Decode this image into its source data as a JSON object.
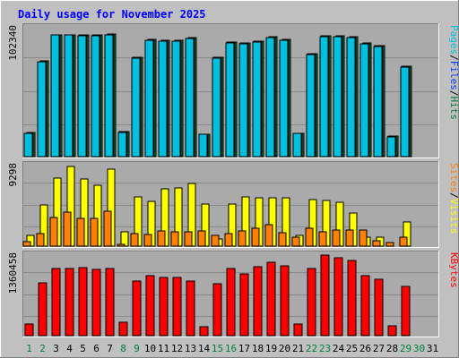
{
  "chart_data": {
    "type": "bar",
    "title": "Daily usage for November 2025",
    "categories": [
      "1",
      "2",
      "3",
      "4",
      "5",
      "6",
      "7",
      "8",
      "9",
      "10",
      "11",
      "12",
      "13",
      "14",
      "15",
      "16",
      "17",
      "18",
      "19",
      "20",
      "21",
      "22",
      "23",
      "24",
      "25",
      "26",
      "27",
      "28",
      "29",
      "30",
      "31"
    ],
    "weekend_days": [
      "1",
      "2",
      "8",
      "9",
      "15",
      "16",
      "22",
      "23",
      "29",
      "30"
    ],
    "colors": {
      "background": "#c0c0c0",
      "plot": "#aaaaaa",
      "title": "#0000ff",
      "pages": "#00c0e0",
      "files": "#0040ff",
      "hits": "#008040",
      "visits": "#ffff00",
      "sites": "#ff8000",
      "kbytes": "#ff0000",
      "weekday_label": "#000000",
      "weekend_label": "#008040"
    },
    "panels": [
      {
        "id": "hits",
        "y_max_label": "102340",
        "ylim": [
          0,
          108000
        ],
        "side_labels": [
          {
            "text": "Pages",
            "color": "#00c0e0"
          },
          {
            "text": "/",
            "color": "#000000"
          },
          {
            "text": "Files",
            "color": "#0040ff"
          },
          {
            "text": "/",
            "color": "#000000"
          },
          {
            "text": "Hits",
            "color": "#008040"
          }
        ],
        "series": [
          {
            "name": "Hits",
            "color": "#008040",
            "values": [
              20500,
              77700,
              99000,
              99000,
              98700,
              98600,
              99200,
              21500,
              81000,
              95000,
              94300,
              94300,
              96400,
              19500,
              81000,
              93000,
              92500,
              94000,
              97000,
              95000,
              20300,
              84000,
              98000,
              97900,
              97000,
              92000,
              90200,
              18000,
              74000,
              0,
              0
            ]
          },
          {
            "name": "Files",
            "color": "#0040ff",
            "values": [
              20300,
              77400,
              98800,
              98800,
              98500,
              98400,
              99000,
              21300,
              80700,
              94700,
              94000,
              94000,
              96100,
              19300,
              80700,
              92700,
              92200,
              93700,
              96700,
              94700,
              20100,
              83700,
              97700,
              97600,
              96700,
              91700,
              89900,
              17800,
              73700,
              0,
              0
            ]
          },
          {
            "name": "Pages",
            "color": "#00c0e0",
            "values": [
              20000,
              77000,
              98500,
              98500,
              98200,
              98200,
              98600,
              21000,
              80300,
              94300,
              93600,
              93600,
              95700,
              19000,
              80300,
              92300,
              91800,
              93300,
              96300,
              94300,
              19800,
              83300,
              97300,
              97300,
              96300,
              91300,
              89400,
              17500,
              73300,
              0,
              0
            ]
          }
        ]
      },
      {
        "id": "visits",
        "y_max_label": "9298",
        "ylim": [
          0,
          9900
        ],
        "side_labels": [
          {
            "text": "Sites",
            "color": "#ff8000"
          },
          {
            "text": "/",
            "color": "#000000"
          },
          {
            "text": "Visits",
            "color": "#ffff00"
          }
        ],
        "series": [
          {
            "name": "Visits",
            "color": "#ffff00",
            "values": [
              1450,
              4900,
              8000,
              9250,
              7900,
              7150,
              8950,
              1850,
              5850,
              5300,
              6700,
              6800,
              7300,
              5000,
              1000,
              5000,
              5800,
              5750,
              5750,
              5700,
              1450,
              5550,
              5450,
              5200,
              3950,
              1250,
              1200,
              0,
              3000,
              0,
              0
            ]
          },
          {
            "name": "Sites",
            "color": "#ff8000",
            "values": [
              700,
              1600,
              3500,
              4050,
              3350,
              3350,
              4150,
              400,
              1600,
              1550,
              1900,
              1850,
              1800,
              1950,
              1400,
              1650,
              1950,
              2200,
              2650,
              1750,
              1200,
              2200,
              1850,
              2050,
              2000,
              2000,
              800,
              600,
              1200,
              0,
              0
            ]
          }
        ]
      },
      {
        "id": "kbytes",
        "y_max_label": "1360458",
        "ylim": [
          0,
          1440000
        ],
        "side_labels": [
          {
            "text": "KBytes",
            "color": "#ff0000"
          }
        ],
        "series": [
          {
            "name": "KBytes",
            "color": "#ff0000",
            "values": [
              225000,
              900000,
              1150000,
              1150000,
              1160000,
              1130000,
              1150000,
              245000,
              930000,
              1020000,
              990000,
              990000,
              935000,
              175000,
              885000,
              1140000,
              1050000,
              1180000,
              1250000,
              1190000,
              220000,
              1150000,
              1360458,
              1320000,
              1270000,
              1020000,
              960000,
              200000,
              850000,
              0,
              0
            ]
          }
        ]
      }
    ]
  }
}
